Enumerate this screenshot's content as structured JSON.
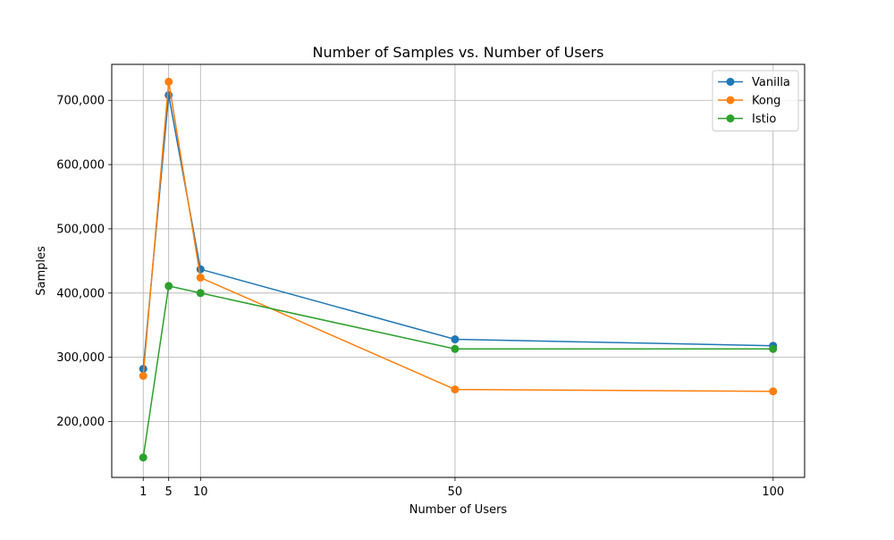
{
  "chart_data": {
    "type": "line",
    "title": "Number of Samples vs. Number of Users",
    "xlabel": "Number of Users",
    "ylabel": "Samples",
    "x": [
      1,
      5,
      10,
      50,
      100
    ],
    "xticks": [
      1,
      5,
      10,
      50,
      100
    ],
    "xlim": [
      -3.95,
      104.95
    ],
    "ylim": [
      113000,
      756000
    ],
    "yticks": [
      200000,
      300000,
      400000,
      500000,
      600000,
      700000
    ],
    "ytick_labels": [
      "200,000",
      "300,000",
      "400,000",
      "500,000",
      "600,000",
      "700,000"
    ],
    "grid": true,
    "legend_position": "top-right",
    "series": [
      {
        "name": "Vanilla",
        "color": "#1f77b4",
        "values": [
          282000,
          708000,
          437000,
          328000,
          318000
        ]
      },
      {
        "name": "Kong",
        "color": "#ff7f0e",
        "values": [
          271000,
          729000,
          424000,
          250000,
          247000
        ]
      },
      {
        "name": "Istio",
        "color": "#2ca02c",
        "values": [
          144000,
          411000,
          400000,
          313000,
          313000
        ]
      }
    ]
  }
}
